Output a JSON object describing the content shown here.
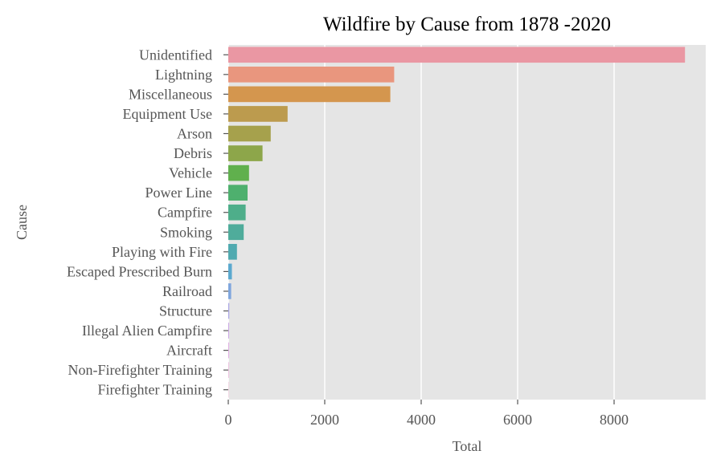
{
  "chart_data": {
    "type": "bar",
    "orientation": "horizontal",
    "title": "Wildfire by Cause from 1878 -2020",
    "xlabel": "Total",
    "ylabel": "Cause",
    "xlim": [
      0,
      9900
    ],
    "xticks": [
      0,
      2000,
      4000,
      6000,
      8000
    ],
    "grid": true,
    "plot_background": "#e5e5e5",
    "categories": [
      "Unidentified",
      "Lightning",
      "Miscellaneous",
      "Equipment Use",
      "Arson",
      "Debris",
      "Vehicle",
      "Power Line",
      "Campfire",
      "Smoking",
      "Playing with Fire",
      "Escaped Prescribed Burn",
      "Railroad",
      "Structure",
      "Illegal Alien Campfire",
      "Aircraft",
      "Non-Firefighter Training",
      "Firefighter Training"
    ],
    "values": [
      9470,
      3440,
      3360,
      1230,
      880,
      710,
      430,
      400,
      360,
      320,
      180,
      75,
      60,
      20,
      15,
      12,
      8,
      5
    ],
    "colors": [
      "#ea97a3",
      "#e9967e",
      "#d4964e",
      "#bc9b4e",
      "#a6a14c",
      "#8da64a",
      "#60b04d",
      "#4eb06e",
      "#4eae8a",
      "#4fac9b",
      "#50aab0",
      "#5ba9cf",
      "#7fa6dd",
      "#a9a4e4",
      "#c59de2",
      "#d894dd",
      "#e490ce",
      "#e893bb"
    ]
  }
}
